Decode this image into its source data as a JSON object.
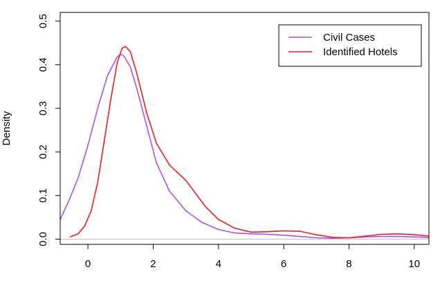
{
  "chart_data": {
    "type": "line",
    "title": "",
    "xlabel": "",
    "ylabel": "Density",
    "xlim": [
      -0.85,
      10.45
    ],
    "ylim": [
      -0.012,
      0.52
    ],
    "x_ticks": [
      0,
      2,
      4,
      6,
      8,
      10
    ],
    "y_ticks": [
      0.0,
      0.1,
      0.2,
      0.3,
      0.4,
      0.5
    ],
    "y_tick_labels": [
      "0.0",
      "0.1",
      "0.2",
      "0.3",
      "0.4",
      "0.5"
    ],
    "baseline_y": 0,
    "grid": false,
    "legend_position": "top-right",
    "series": [
      {
        "name": "Civil Cases",
        "color": "#b04ef0",
        "x": [
          -0.85,
          -0.6,
          -0.3,
          0.0,
          0.3,
          0.6,
          0.9,
          1.0,
          1.1,
          1.3,
          1.5,
          1.8,
          2.1,
          2.5,
          3.0,
          3.5,
          4.0,
          4.5,
          5.0,
          5.5,
          6.0,
          6.5,
          7.0,
          7.5,
          8.0,
          8.5,
          9.0,
          9.5,
          10.0,
          10.45
        ],
        "y": [
          0.045,
          0.085,
          0.14,
          0.215,
          0.3,
          0.375,
          0.418,
          0.424,
          0.42,
          0.395,
          0.345,
          0.26,
          0.175,
          0.11,
          0.065,
          0.038,
          0.022,
          0.014,
          0.012,
          0.011,
          0.009,
          0.006,
          0.003,
          0.002,
          0.003,
          0.005,
          0.006,
          0.006,
          0.005,
          0.004
        ]
      },
      {
        "name": "Identified Hotels",
        "color": "#ee1c1c",
        "x": [
          -0.55,
          -0.3,
          -0.1,
          0.1,
          0.3,
          0.5,
          0.7,
          0.9,
          1.05,
          1.15,
          1.3,
          1.5,
          1.8,
          2.1,
          2.5,
          3.0,
          3.3,
          3.6,
          4.0,
          4.5,
          5.0,
          5.5,
          6.0,
          6.5,
          7.0,
          7.5,
          8.0,
          8.5,
          9.0,
          9.5,
          10.0,
          10.45
        ],
        "y": [
          0.005,
          0.012,
          0.03,
          0.065,
          0.13,
          0.225,
          0.32,
          0.405,
          0.438,
          0.442,
          0.43,
          0.38,
          0.29,
          0.22,
          0.17,
          0.135,
          0.105,
          0.075,
          0.045,
          0.025,
          0.016,
          0.017,
          0.019,
          0.018,
          0.01,
          0.004,
          0.003,
          0.007,
          0.011,
          0.012,
          0.01,
          0.007
        ]
      }
    ]
  }
}
